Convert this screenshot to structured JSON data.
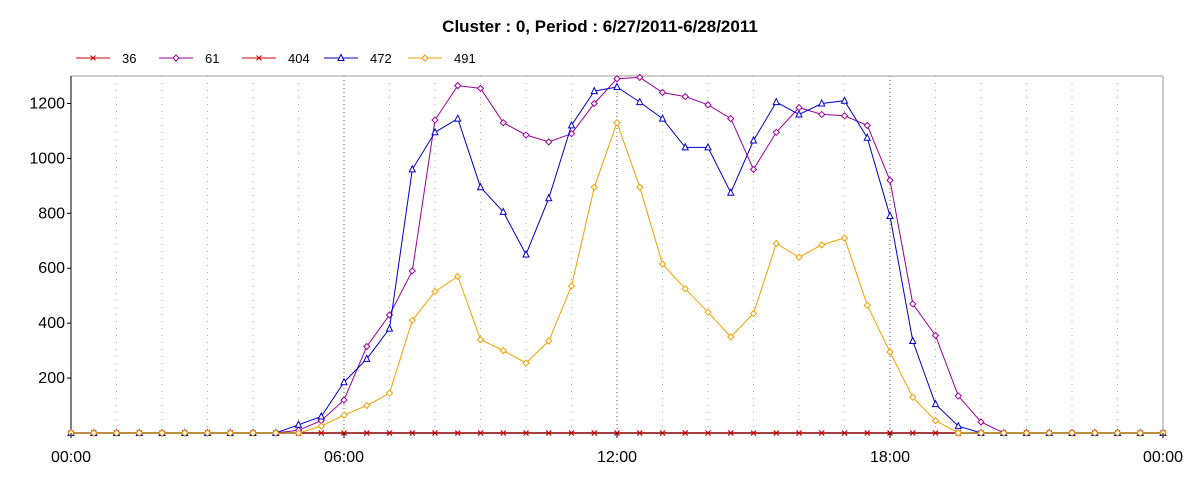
{
  "chart_data": {
    "type": "line",
    "title": "Cluster : 0, Period : 6/27/2011-6/28/2011",
    "xlabel": "",
    "ylabel": "",
    "x_tick_labels": [
      "00:00",
      "06:00",
      "12:00",
      "18:00",
      "00:00"
    ],
    "x_tick_hours": [
      0,
      6,
      12,
      18,
      24
    ],
    "xlim": [
      0,
      24
    ],
    "ylim": [
      0,
      1300
    ],
    "y_ticks": [
      200,
      400,
      600,
      800,
      1000,
      1200
    ],
    "grid": "dotted vertical lines every hour",
    "legend_position": "top-left, horizontal",
    "x": [
      0,
      0.5,
      1,
      1.5,
      2,
      2.5,
      3,
      3.5,
      4,
      4.5,
      5,
      5.5,
      6,
      6.5,
      7,
      7.5,
      8,
      8.5,
      9,
      9.5,
      10,
      10.5,
      11,
      11.5,
      12,
      12.5,
      13,
      13.5,
      14,
      14.5,
      15,
      15.5,
      16,
      16.5,
      17,
      17.5,
      18,
      18.5,
      19,
      19.5,
      20,
      20.5,
      21,
      21.5,
      22,
      22.5,
      23,
      23.5,
      24
    ],
    "series": [
      {
        "name": "36",
        "color": "#cc0000",
        "marker": "x",
        "values": [
          0,
          0,
          0,
          0,
          0,
          0,
          0,
          0,
          0,
          0,
          0,
          0,
          0,
          0,
          0,
          0,
          0,
          0,
          0,
          0,
          0,
          0,
          0,
          0,
          0,
          0,
          0,
          0,
          0,
          0,
          0,
          0,
          0,
          0,
          0,
          0,
          0,
          0,
          0,
          0,
          0,
          0,
          0,
          0,
          0,
          0,
          0,
          0,
          0
        ]
      },
      {
        "name": "61",
        "color": "#990099",
        "marker": "diamond",
        "values": [
          0,
          0,
          0,
          0,
          0,
          0,
          0,
          0,
          0,
          0,
          10,
          45,
          120,
          315,
          430,
          590,
          1140,
          1265,
          1255,
          1130,
          1085,
          1060,
          1090,
          1200,
          1290,
          1295,
          1240,
          1225,
          1195,
          1145,
          960,
          1095,
          1185,
          1160,
          1155,
          1120,
          920,
          470,
          355,
          135,
          40,
          0,
          0,
          0,
          0,
          0,
          0,
          0,
          0
        ]
      },
      {
        "name": "404",
        "color": "#cc0000",
        "marker": "x",
        "values": [
          0,
          0,
          0,
          0,
          0,
          0,
          0,
          0,
          0,
          0,
          0,
          0,
          0,
          0,
          0,
          0,
          0,
          0,
          0,
          0,
          0,
          0,
          0,
          0,
          0,
          0,
          0,
          0,
          0,
          0,
          0,
          0,
          0,
          0,
          0,
          0,
          0,
          0,
          0,
          0,
          0,
          0,
          0,
          0,
          0,
          0,
          0,
          0,
          0
        ]
      },
      {
        "name": "472",
        "color": "#0000cc",
        "marker": "triangle",
        "values": [
          0,
          0,
          0,
          0,
          0,
          0,
          0,
          0,
          0,
          0,
          30,
          60,
          185,
          270,
          380,
          960,
          1095,
          1145,
          895,
          805,
          650,
          855,
          1120,
          1245,
          1260,
          1205,
          1145,
          1040,
          1040,
          875,
          1065,
          1205,
          1160,
          1200,
          1210,
          1075,
          790,
          335,
          105,
          25,
          0,
          0,
          0,
          0,
          0,
          0,
          0,
          0,
          0
        ]
      },
      {
        "name": "491",
        "color": "#f0a000",
        "marker": "diamond",
        "values": [
          0,
          0,
          0,
          0,
          0,
          0,
          0,
          0,
          0,
          0,
          0,
          25,
          65,
          100,
          145,
          410,
          515,
          570,
          340,
          300,
          255,
          335,
          535,
          895,
          1130,
          895,
          615,
          525,
          440,
          350,
          435,
          690,
          640,
          685,
          710,
          465,
          295,
          130,
          45,
          0,
          0,
          0,
          0,
          0,
          0,
          0,
          0,
          0,
          0
        ]
      }
    ]
  }
}
